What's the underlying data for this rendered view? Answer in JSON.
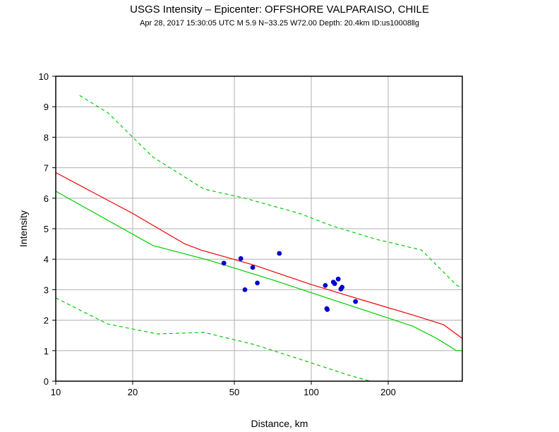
{
  "chart_data": {
    "type": "scatter",
    "title": "USGS Intensity –  Epicenter: OFFSHORE VALPARAISO, CHILE",
    "subtitle": "Apr 28, 2017 15:30:05 UTC   M 5.9   N−33.25 W72.00   Depth: 20.4km   ID:us10008llg",
    "xlabel": "Distance, km",
    "ylabel": "Intensity",
    "x_scale": "log",
    "xlim": [
      10,
      390
    ],
    "ylim": [
      0,
      10
    ],
    "x_ticks": [
      10,
      20,
      50,
      100,
      200
    ],
    "x_tick_labels": [
      "10",
      "20",
      "50",
      "100",
      "200"
    ],
    "y_ticks": [
      0,
      1,
      2,
      3,
      4,
      5,
      6,
      7,
      8,
      9,
      10
    ],
    "y_tick_labels": [
      "0",
      "1",
      "2",
      "3",
      "4",
      "5",
      "6",
      "7",
      "8",
      "9",
      "10"
    ],
    "grid": true,
    "colors": {
      "points": "#0000cc",
      "red_line": "#ee0000",
      "green_line": "#00cc00",
      "grid": "#b0b0b0",
      "frame": "#000000"
    },
    "points": {
      "x": [
        45.5,
        53.0,
        55.0,
        59.0,
        61.5,
        75.0,
        113.5,
        115.0,
        115.5,
        122.0,
        123.5,
        127.5,
        130.5,
        132.0,
        149.0
      ],
      "y": [
        3.87,
        4.02,
        3.0,
        3.73,
        3.22,
        4.19,
        3.14,
        2.38,
        2.35,
        3.25,
        3.2,
        3.35,
        3.02,
        3.08,
        2.61
      ]
    },
    "series": [
      {
        "style": "solid",
        "color": "#ee0000",
        "x": [
          10,
          20,
          32,
          37,
          60,
          100,
          160,
          250,
          330,
          390
        ],
        "y": [
          6.84,
          5.5,
          4.5,
          4.3,
          3.8,
          3.17,
          2.65,
          2.17,
          1.85,
          1.4
        ]
      },
      {
        "style": "solid",
        "color": "#00cc00",
        "x": [
          10,
          24,
          40,
          70,
          100,
          160,
          250,
          310,
          370,
          390
        ],
        "y": [
          6.23,
          4.45,
          3.96,
          3.33,
          2.9,
          2.34,
          1.8,
          1.4,
          1.0,
          1.0
        ]
      },
      {
        "style": "dashed",
        "color": "#00cc00",
        "x": [
          12.4,
          16,
          24,
          38,
          55,
          90,
          120,
          180,
          270,
          370,
          390
        ],
        "y": [
          9.37,
          8.8,
          7.35,
          6.3,
          6.0,
          5.5,
          5.1,
          4.65,
          4.3,
          3.15,
          3.05
        ]
      },
      {
        "style": "dashed",
        "color": "#00cc00",
        "x": [
          10,
          16,
          25,
          38,
          60,
          100,
          140,
          170
        ],
        "y": [
          2.73,
          1.87,
          1.55,
          1.6,
          1.2,
          0.6,
          0.2,
          0.0
        ]
      }
    ]
  }
}
